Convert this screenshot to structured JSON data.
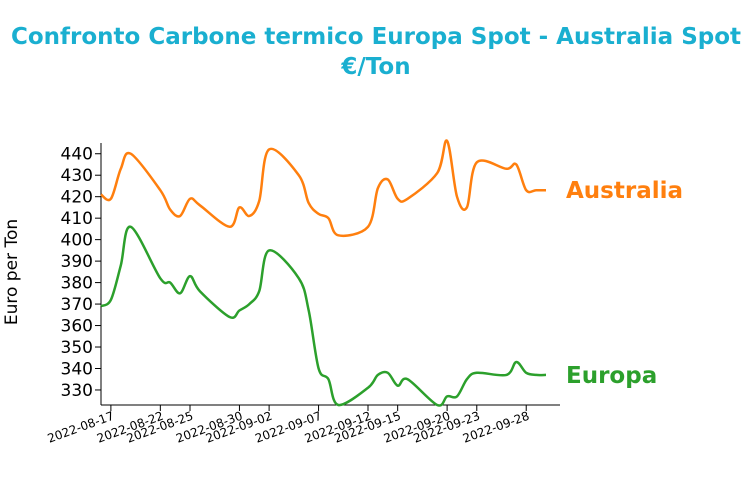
{
  "chart_data": {
    "type": "line",
    "title_line1": "Confronto Carbone termico Europa Spot - Australia Spot",
    "title_line2": "€/Ton",
    "ylabel": "Euro per Ton",
    "xlabel": "",
    "ylim": [
      323,
      445
    ],
    "y_ticks": [
      330,
      340,
      350,
      360,
      370,
      380,
      390,
      400,
      410,
      420,
      430,
      440
    ],
    "x_ticks": [
      "2022-08-17",
      "2022-08-22",
      "2022-08-25",
      "2022-08-30",
      "2022-09-02",
      "2022-09-07",
      "2022-09-12",
      "2022-09-15",
      "2022-09-20",
      "2022-09-23",
      "2022-09-28"
    ],
    "x": [
      "2022-08-16",
      "2022-08-17",
      "2022-08-18",
      "2022-08-19",
      "2022-08-22",
      "2022-08-23",
      "2022-08-24",
      "2022-08-25",
      "2022-08-26",
      "2022-08-29",
      "2022-08-30",
      "2022-08-31",
      "2022-09-01",
      "2022-09-02",
      "2022-09-05",
      "2022-09-06",
      "2022-09-07",
      "2022-09-08",
      "2022-09-09",
      "2022-09-12",
      "2022-09-13",
      "2022-09-14",
      "2022-09-15",
      "2022-09-16",
      "2022-09-19",
      "2022-09-20",
      "2022-09-21",
      "2022-09-22",
      "2022-09-23",
      "2022-09-26",
      "2022-09-27",
      "2022-09-28",
      "2022-09-29",
      "2022-09-30"
    ],
    "series": [
      {
        "name": "Australia",
        "color": "#ff7f0e",
        "values": [
          421,
          419,
          433,
          440,
          423,
          414,
          411,
          419,
          416,
          406,
          415,
          411,
          418,
          442,
          430,
          417,
          412,
          410,
          402,
          406,
          424,
          428,
          419,
          419,
          431,
          446,
          420,
          415,
          436,
          433,
          435,
          423,
          423,
          423
        ]
      },
      {
        "name": "Europa",
        "color": "#2ca02c",
        "values": [
          369,
          372,
          388,
          406,
          382,
          380,
          375,
          383,
          376,
          364,
          367,
          370,
          376,
          395,
          382,
          367,
          340,
          335,
          323,
          331,
          337,
          338,
          332,
          335,
          323,
          327,
          327,
          335,
          338,
          337,
          343,
          338,
          337,
          337
        ]
      }
    ]
  }
}
